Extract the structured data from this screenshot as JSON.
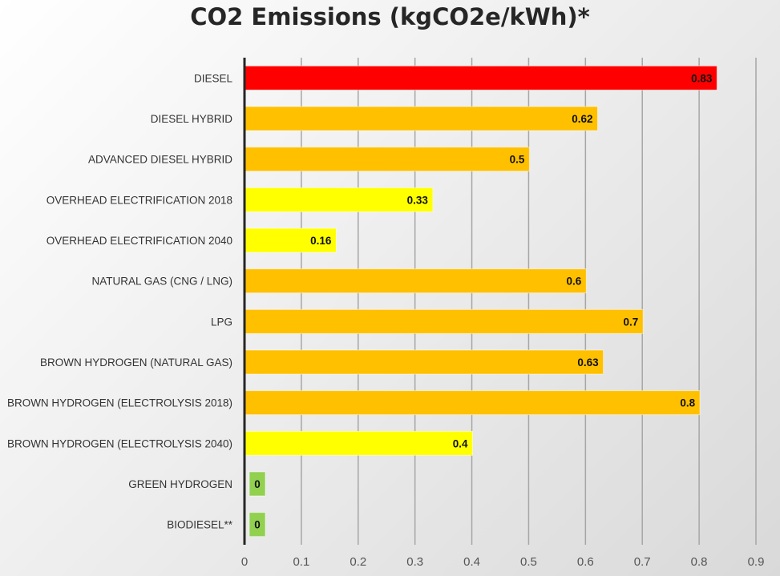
{
  "chart_data": {
    "type": "bar",
    "orientation": "horizontal",
    "title": "CO2 Emissions (kgCO2e/kWh)*",
    "categories": [
      "DIESEL",
      "DIESEL HYBRID",
      "ADVANCED DIESEL HYBRID",
      "OVERHEAD ELECTRIFICATION 2018",
      "OVERHEAD ELECTRIFICATION 2040",
      "NATURAL GAS (CNG / LNG)",
      "LPG",
      "BROWN HYDROGEN (NATURAL GAS)",
      "BROWN HYDROGEN (ELECTROLYSIS 2018)",
      "BROWN HYDROGEN (ELECTROLYSIS 2040)",
      "GREEN HYDROGEN",
      "BIODIESEL**"
    ],
    "values": [
      0.83,
      0.62,
      0.5,
      0.33,
      0.16,
      0.6,
      0.7,
      0.63,
      0.8,
      0.4,
      0,
      0
    ],
    "colors": [
      "#ff0000",
      "#ffc000",
      "#ffc000",
      "#ffff00",
      "#ffff00",
      "#ffc000",
      "#ffc000",
      "#ffc000",
      "#ffc000",
      "#ffff00",
      "#92d050",
      "#92d050"
    ],
    "xlim": [
      0,
      0.9
    ],
    "ticks": [
      "0",
      "0.1",
      "0.2",
      "0.3",
      "0.4",
      "0.5",
      "0.6",
      "0.7",
      "0.8",
      "0.9"
    ],
    "grid": true,
    "legend": "none"
  }
}
